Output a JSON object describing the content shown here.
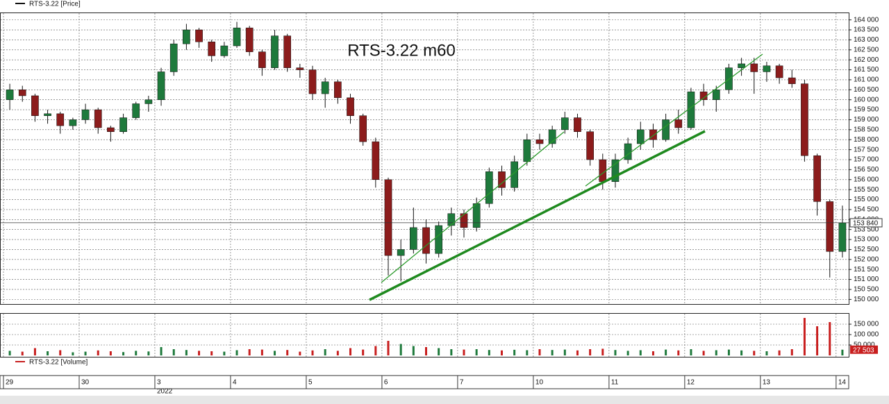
{
  "chart_data": [
    {
      "type": "candlestick",
      "title": "RTS-3.22 m60",
      "name": "RTS-3.22 [Price]",
      "categories": [
        "29",
        null,
        null,
        null,
        null,
        null,
        "30",
        null,
        null,
        null,
        null,
        null,
        "3",
        null,
        null,
        null,
        null,
        null,
        "4",
        null,
        null,
        null,
        null,
        null,
        "5",
        null,
        null,
        null,
        null,
        null,
        "6",
        null,
        null,
        null,
        null,
        null,
        "7",
        null,
        null,
        null,
        null,
        null,
        "10",
        null,
        null,
        null,
        null,
        null,
        "11",
        null,
        null,
        null,
        null,
        null,
        "12",
        null,
        null,
        null,
        null,
        null,
        "13",
        null,
        null,
        null,
        null,
        null,
        "14"
      ],
      "year": "2022",
      "open": [
        160000,
        160500,
        160200,
        159200,
        159300,
        158700,
        159000,
        159500,
        158600,
        158400,
        159100,
        159800,
        160000,
        161400,
        162800,
        163500,
        162900,
        162200,
        162700,
        163600,
        162400,
        161600,
        163200,
        161600,
        161500,
        160300,
        160900,
        160100,
        159200,
        157900,
        156000,
        152200,
        152500,
        153600,
        152300,
        153700,
        154300,
        153600,
        154800,
        156400,
        155600,
        156900,
        158000,
        157800,
        158500,
        159100,
        158400,
        157000,
        155900,
        157000,
        157800,
        158500,
        158000,
        159000,
        158600,
        160400,
        160000,
        160500,
        161600,
        161800,
        161400,
        161700,
        161100,
        160800,
        157200,
        154900,
        152400
      ],
      "high": [
        160800,
        160700,
        160300,
        159500,
        159400,
        159100,
        159800,
        159600,
        158700,
        159300,
        159900,
        160200,
        161600,
        163000,
        163800,
        163600,
        163000,
        162900,
        163900,
        163700,
        162500,
        163500,
        163300,
        161800,
        161700,
        161100,
        161000,
        160300,
        159300,
        158100,
        156100,
        153000,
        154600,
        154000,
        153900,
        154600,
        154500,
        155100,
        156600,
        156700,
        157200,
        158300,
        158300,
        158700,
        159400,
        159300,
        158500,
        157300,
        157300,
        158100,
        158900,
        158800,
        159300,
        159500,
        160600,
        160800,
        160700,
        161800,
        162100,
        162100,
        161900,
        161800,
        161500,
        161000,
        157300,
        155000,
        154700
      ],
      "low": [
        159500,
        159900,
        158900,
        158800,
        158300,
        158500,
        158800,
        158300,
        157900,
        158300,
        159000,
        159400,
        159700,
        161200,
        162500,
        162600,
        161900,
        162100,
        162600,
        162200,
        161200,
        161500,
        161400,
        161100,
        160000,
        159600,
        159800,
        158800,
        157700,
        155600,
        151200,
        150900,
        152300,
        151800,
        152100,
        153200,
        153100,
        153400,
        154600,
        155200,
        155400,
        156700,
        157500,
        157600,
        158300,
        158100,
        156700,
        155500,
        155600,
        156800,
        157500,
        157600,
        157900,
        158300,
        158500,
        159700,
        159400,
        160300,
        161200,
        160300,
        160900,
        160800,
        160600,
        156900,
        154200,
        151100,
        152100
      ],
      "close": [
        160500,
        160200,
        159200,
        159300,
        158700,
        159000,
        159500,
        158600,
        158400,
        159100,
        159800,
        160000,
        161400,
        162800,
        163500,
        162900,
        162200,
        162700,
        163600,
        162400,
        161600,
        163200,
        161600,
        161500,
        160300,
        160900,
        160100,
        159200,
        157900,
        156000,
        152200,
        152500,
        153600,
        152300,
        153700,
        154300,
        153600,
        154800,
        156400,
        155600,
        156900,
        158000,
        157800,
        158500,
        159100,
        158400,
        157000,
        155900,
        157000,
        157800,
        158500,
        158000,
        159000,
        158600,
        160400,
        160000,
        160500,
        161600,
        161800,
        161400,
        161700,
        161100,
        160800,
        157200,
        154900,
        152400,
        153840
      ],
      "last_value_label": "153 840",
      "up_color": "#1e7a3c",
      "down_color": "#8c1c1c",
      "wick_color": "#111111",
      "ylim": [
        149700,
        164300
      ],
      "yticks": [
        {
          "value": 150000,
          "label": "150 000"
        },
        {
          "value": 150500,
          "label": "150 500"
        },
        {
          "value": 151000,
          "label": "151 000"
        },
        {
          "value": 151500,
          "label": "151 500"
        },
        {
          "value": 152000,
          "label": "152 000"
        },
        {
          "value": 152500,
          "label": "152 500"
        },
        {
          "value": 153000,
          "label": "153 000"
        },
        {
          "value": 153500,
          "label": "153 500"
        },
        {
          "value": 154000,
          "label": "154 000"
        },
        {
          "value": 154500,
          "label": "154 500"
        },
        {
          "value": 155000,
          "label": "155 000"
        },
        {
          "value": 155500,
          "label": "155 500"
        },
        {
          "value": 156000,
          "label": "156 000"
        },
        {
          "value": 156500,
          "label": "156 500"
        },
        {
          "value": 157000,
          "label": "157 000"
        },
        {
          "value": 157500,
          "label": "157 500"
        },
        {
          "value": 158000,
          "label": "158 000"
        },
        {
          "value": 158500,
          "label": "158 500"
        },
        {
          "value": 159000,
          "label": "159 000"
        },
        {
          "value": 159500,
          "label": "159 500"
        },
        {
          "value": 160000,
          "label": "160 000"
        },
        {
          "value": 160500,
          "label": "160 500"
        },
        {
          "value": 161000,
          "label": "161 000"
        },
        {
          "value": 161500,
          "label": "161 500"
        },
        {
          "value": 162000,
          "label": "162 000"
        },
        {
          "value": 162500,
          "label": "162 500"
        },
        {
          "value": 163000,
          "label": "163 000"
        },
        {
          "value": 163500,
          "label": "163 500"
        },
        {
          "value": 164000,
          "label": "164 000"
        }
      ],
      "grid": true
    },
    {
      "type": "bar",
      "name": "RTS-3.22 [Volume]",
      "color": "#c81e1e",
      "values": [
        22000,
        18000,
        35000,
        20000,
        25000,
        15000,
        18000,
        24000,
        20000,
        16000,
        22000,
        19000,
        40000,
        30000,
        26000,
        22000,
        20000,
        18000,
        25000,
        30000,
        28000,
        22000,
        26000,
        18000,
        24000,
        30000,
        22000,
        35000,
        28000,
        45000,
        70000,
        55000,
        45000,
        40000,
        35000,
        30000,
        28000,
        30000,
        26000,
        24000,
        27000,
        25000,
        30000,
        26000,
        28000,
        24000,
        30000,
        32000,
        26000,
        22000,
        25000,
        20000,
        28000,
        24000,
        30000,
        22000,
        25000,
        28000,
        24000,
        22000,
        20000,
        24000,
        30000,
        180000,
        140000,
        160000,
        27503
      ],
      "last_value_label": "27 503",
      "ylim": [
        0,
        190000
      ],
      "yticks": [
        {
          "value": 50000,
          "label": "50 000"
        },
        {
          "value": 100000,
          "label": "100 000"
        },
        {
          "value": 150000,
          "label": "150 000"
        }
      ],
      "grid": true
    }
  ]
}
